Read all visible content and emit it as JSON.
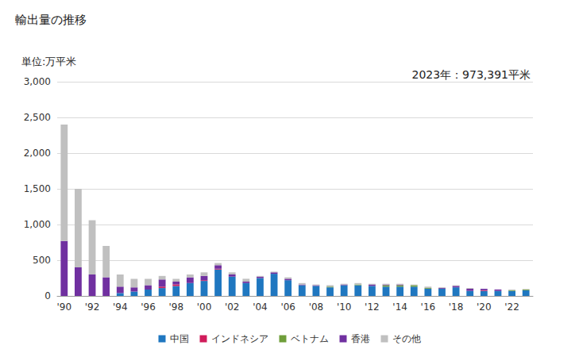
{
  "chart_data": {
    "type": "bar",
    "title": "輸出量の推移",
    "subtitle": "単位:万平米",
    "annotation": "2023年：973,391平米",
    "categories": [
      "'90",
      null,
      "'92",
      null,
      "'94",
      null,
      "'96",
      null,
      "'98",
      null,
      "'00",
      null,
      "'02",
      null,
      "'04",
      null,
      "'06",
      null,
      "'08",
      null,
      "'10",
      null,
      "'12",
      null,
      "'14",
      null,
      "'16",
      null,
      "'18",
      null,
      "'20",
      null,
      "'22",
      null
    ],
    "series": [
      {
        "name": "中国",
        "color": "#1f77c0",
        "values": [
          0,
          0,
          0,
          0,
          40,
          60,
          90,
          110,
          140,
          180,
          210,
          370,
          270,
          180,
          250,
          310,
          220,
          150,
          140,
          120,
          150,
          150,
          140,
          130,
          130,
          130,
          100,
          100,
          120,
          70,
          70,
          70,
          70,
          80
        ]
      },
      {
        "name": "インドネシア",
        "color": "#d01c5b",
        "values": [
          0,
          0,
          0,
          0,
          0,
          0,
          0,
          20,
          20,
          0,
          10,
          10,
          0,
          0,
          0,
          0,
          0,
          0,
          0,
          0,
          0,
          0,
          0,
          0,
          0,
          0,
          0,
          0,
          0,
          0,
          10,
          0,
          0,
          0
        ]
      },
      {
        "name": "ベトナム",
        "color": "#6f9e3a",
        "values": [
          0,
          0,
          0,
          0,
          0,
          0,
          0,
          0,
          0,
          0,
          0,
          0,
          0,
          0,
          0,
          0,
          0,
          0,
          0,
          10,
          0,
          10,
          0,
          20,
          20,
          20,
          10,
          0,
          0,
          0,
          0,
          0,
          10,
          10
        ]
      },
      {
        "name": "香港",
        "color": "#7030a0",
        "values": [
          770,
          400,
          300,
          260,
          90,
          60,
          60,
          100,
          40,
          80,
          60,
          50,
          30,
          20,
          20,
          20,
          20,
          10,
          10,
          0,
          10,
          0,
          20,
          10,
          10,
          0,
          0,
          10,
          20,
          30,
          20,
          20,
          0,
          0
        ]
      },
      {
        "name": "その他",
        "color": "#c0c0c0",
        "values": [
          1630,
          1100,
          760,
          440,
          170,
          120,
          90,
          50,
          40,
          40,
          50,
          30,
          30,
          40,
          10,
          10,
          20,
          20,
          10,
          20,
          10,
          20,
          10,
          10,
          10,
          10,
          20,
          10,
          10,
          10,
          0,
          0,
          10,
          7
        ]
      }
    ],
    "ylim": [
      0,
      3000
    ],
    "yticks": [
      0,
      500,
      {
        "value": 1000,
        "label": "1,000"
      },
      {
        "value": 1500,
        "label": "1,500"
      },
      {
        "value": 2000,
        "label": "2,000"
      },
      {
        "value": 2500,
        "label": "2,500"
      },
      {
        "value": 3000,
        "label": "3,000"
      }
    ],
    "stacked": true,
    "grid": true,
    "legend": "bottom"
  }
}
